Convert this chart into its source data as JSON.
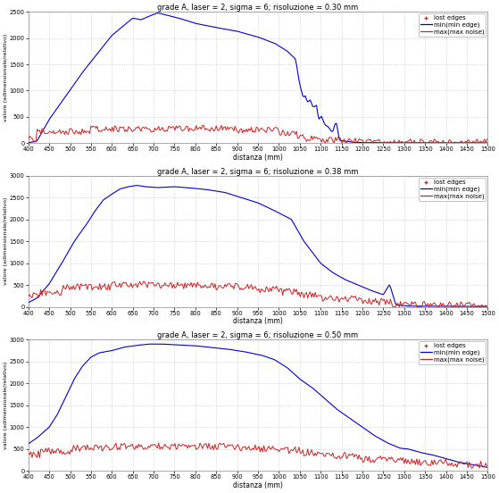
{
  "titles": [
    "grade A, laser = 2, sigma = 6; risoluzione = 0.30 mm",
    "grade A, laser = 2, sigma = 6; risoluzione = 0.38 mm",
    "grade A, laser = 2, sigma = 6; risoluzione = 0.50 mm"
  ],
  "xlabel": "distanza (mm)",
  "ylabel": "valore (adimensionale/relativo)",
  "xlim": [
    400,
    1500
  ],
  "yticks0": [
    0,
    500,
    1000,
    1500,
    2000,
    2500
  ],
  "yticks1": [
    0,
    500,
    1000,
    1500,
    2000,
    2500,
    3000
  ],
  "yticks2": [
    0,
    500,
    1000,
    1500,
    2000,
    2500,
    3000
  ],
  "xticks": [
    400,
    450,
    500,
    550,
    600,
    650,
    700,
    750,
    800,
    850,
    900,
    950,
    1000,
    1050,
    1100,
    1150,
    1200,
    1250,
    1300,
    1350,
    1400,
    1450,
    1500
  ],
  "blue_color": "#0000cc",
  "red_color": "#cc2222",
  "bg_color": "#ffffff",
  "grid_color": "#bbbbbb",
  "title_fontsize": 6.0,
  "axis_fontsize": 5.5,
  "tick_fontsize": 4.8,
  "legend_fontsize": 5.0,
  "ylabel_fontsize": 4.5,
  "linewidth_blue": 0.8,
  "linewidth_red": 0.7
}
